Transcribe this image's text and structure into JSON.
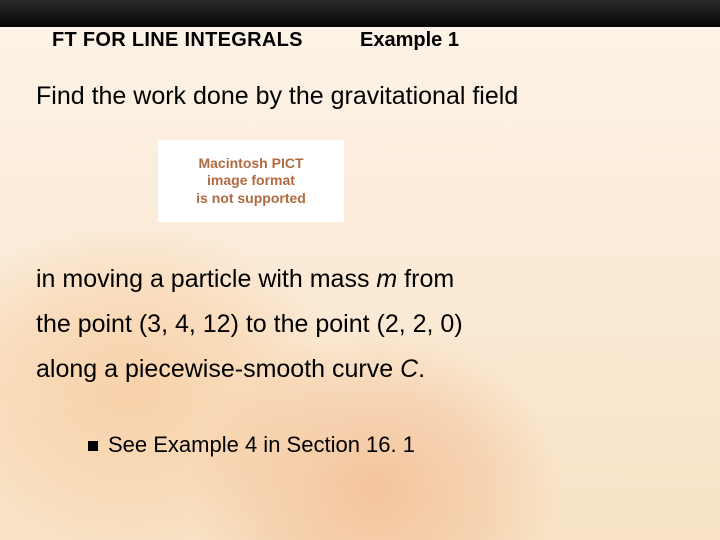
{
  "header": {
    "title": "FT FOR LINE INTEGRALS",
    "example_label": "Example 1"
  },
  "body": {
    "line1": "Find the work done by the gravitational field",
    "pict": {
      "l1": "Macintosh PICT",
      "l2": "image format",
      "l3": "is not supported"
    },
    "line2_pre": "in moving a particle with mass ",
    "line2_m": "m",
    "line2_post": " from",
    "line3": "the point (3, 4, 12) to the point (2, 2, 0)",
    "line4_pre": "along a piecewise-smooth curve ",
    "line4_c": "C",
    "line4_post": "."
  },
  "bullet": {
    "text": "See Example 4 in Section 16. 1"
  },
  "colors": {
    "topbar": "#0a0a0a",
    "bg_top": "#fdf4e8",
    "bg_bottom": "#f8e3c6",
    "pict_text": "#b06a42",
    "text": "#000000"
  }
}
